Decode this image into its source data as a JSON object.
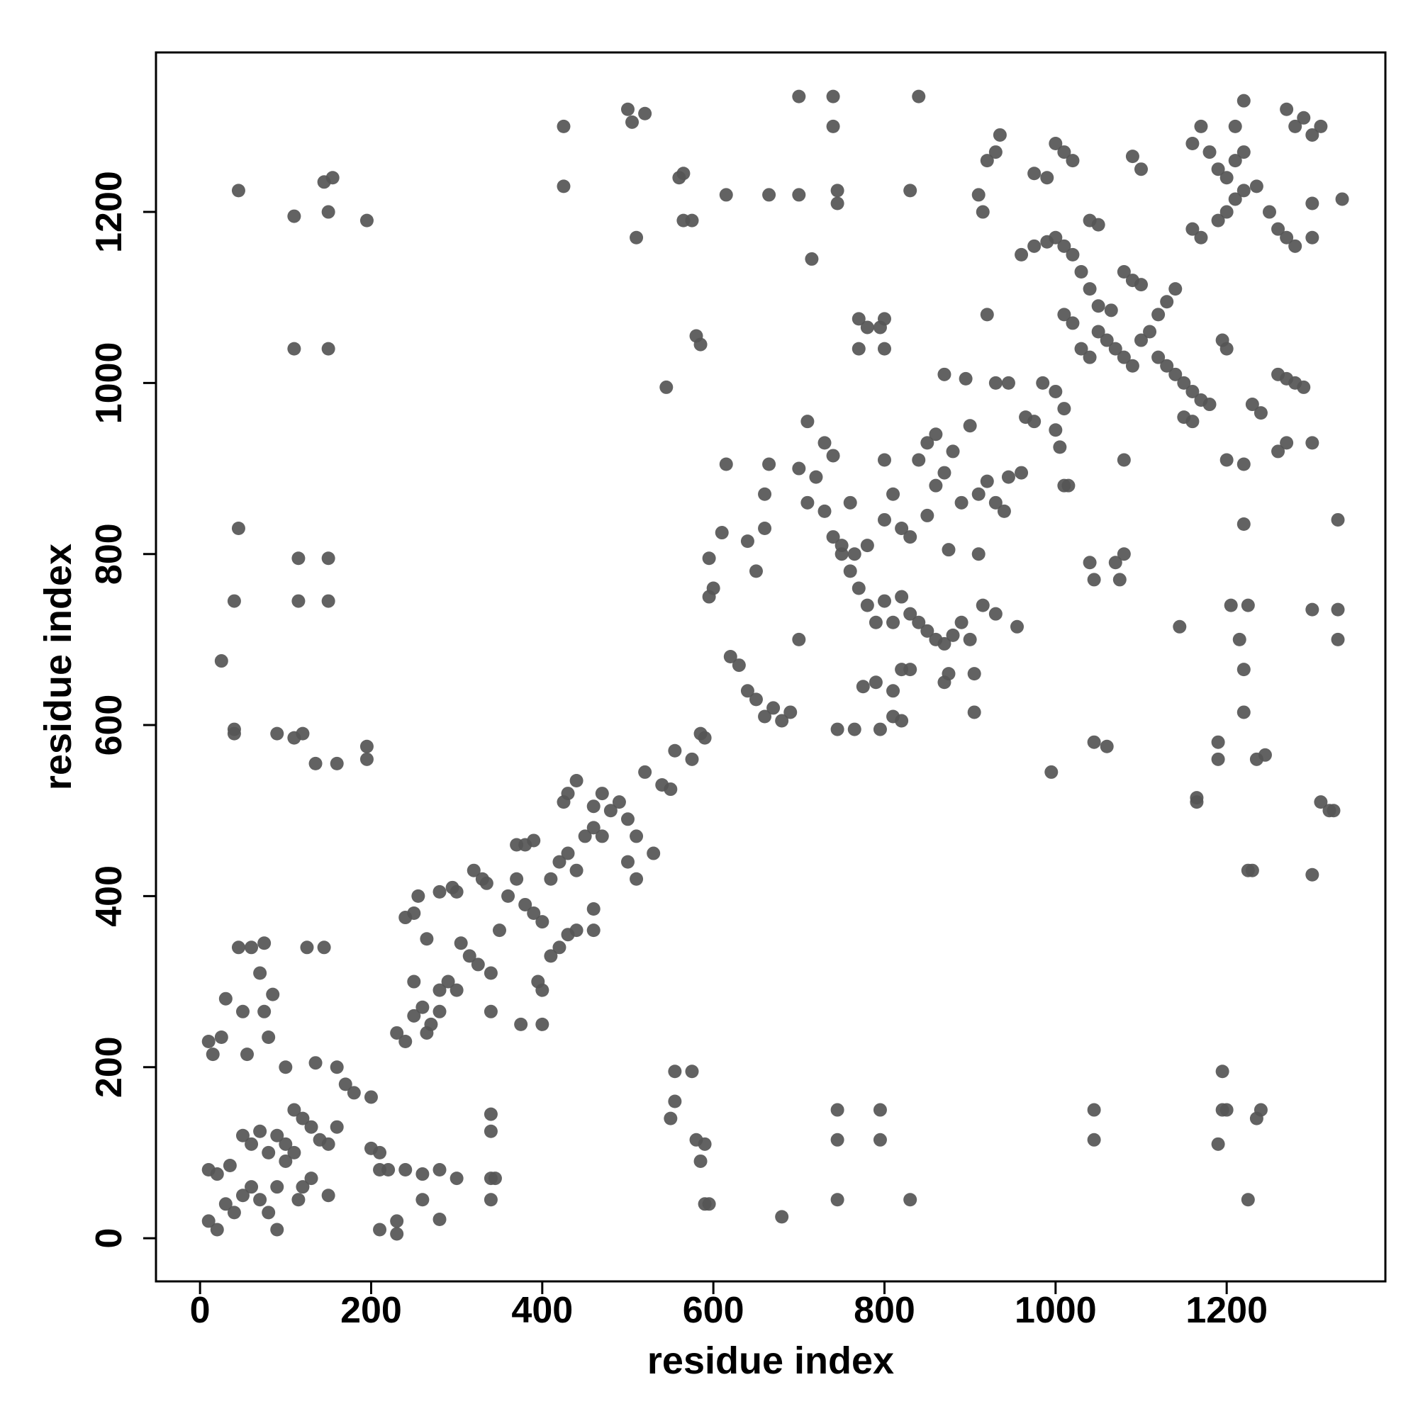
{
  "chart_data": {
    "type": "scatter",
    "x_label": "residue index",
    "y_label": "residue index",
    "xlim": [
      -51.5,
      1385.5
    ],
    "ylim": [
      -50.5,
      1386.5
    ],
    "xticks": [
      0,
      200,
      400,
      600,
      800,
      1000,
      1200
    ],
    "yticks": [
      0,
      200,
      400,
      600,
      800,
      1000,
      1200
    ],
    "grid": false,
    "color": "#555555",
    "x": [
      10,
      20,
      30,
      40,
      50,
      60,
      70,
      80,
      90,
      10,
      20,
      35,
      50,
      60,
      70,
      80,
      90,
      100,
      110,
      120,
      130,
      140,
      150,
      160,
      160,
      170,
      180,
      200,
      200,
      210,
      210,
      220,
      230,
      210,
      230,
      240,
      260,
      280,
      300,
      260,
      280,
      10,
      25,
      15,
      55,
      50,
      80,
      75,
      85,
      30,
      70,
      60,
      45,
      75,
      125,
      145,
      100,
      135,
      115,
      120,
      130,
      150,
      100,
      110,
      90,
      45,
      110,
      150,
      145,
      155,
      195,
      110,
      150,
      45,
      115,
      150,
      40,
      115,
      150,
      25,
      40,
      40,
      90,
      110,
      120,
      135,
      160,
      195,
      195,
      230,
      240,
      250,
      260,
      270,
      280,
      290,
      300,
      250,
      255,
      265,
      280,
      295,
      305,
      315,
      325,
      340,
      350,
      360,
      370,
      380,
      390,
      400,
      410,
      420,
      430,
      440,
      370,
      380,
      390,
      400,
      375,
      340,
      335,
      410,
      420,
      430,
      440,
      450,
      460,
      470,
      480,
      490,
      500,
      510,
      430,
      425,
      440,
      460,
      470,
      500,
      510,
      530,
      520,
      540,
      550,
      460,
      460,
      400,
      395,
      320,
      330,
      300,
      280,
      265,
      240,
      250,
      340,
      340,
      340,
      340,
      345,
      555,
      575,
      555,
      550,
      580,
      590,
      585,
      590,
      595,
      680,
      745,
      745,
      745,
      795,
      795,
      830,
      425,
      425,
      500,
      505,
      520,
      510,
      560,
      565,
      565,
      575,
      615,
      665,
      700,
      700,
      740,
      740,
      745,
      745,
      715,
      840,
      830,
      580,
      585,
      545,
      770,
      780,
      795,
      800,
      770,
      800,
      555,
      575,
      585,
      590,
      595,
      600,
      595,
      610,
      615,
      620,
      630,
      640,
      650,
      660,
      670,
      680,
      690,
      650,
      640,
      660,
      660,
      665,
      700,
      710,
      720,
      730,
      740,
      750,
      760,
      770,
      780,
      790,
      800,
      810,
      820,
      830,
      840,
      850,
      860,
      870,
      880,
      890,
      900,
      700,
      710,
      730,
      740,
      750,
      765,
      780,
      760,
      745,
      765,
      775,
      790,
      795,
      810,
      820,
      810,
      820,
      830,
      800,
      820,
      830,
      800,
      810,
      840,
      850,
      860,
      860,
      870,
      880,
      890,
      900,
      910,
      920,
      930,
      940,
      870,
      875,
      905,
      905,
      915,
      930,
      955,
      910,
      875,
      945,
      960,
      850,
      870,
      895,
      910,
      915,
      920,
      930,
      945,
      965,
      975,
      985,
      1000,
      1010,
      1000,
      1005,
      1010,
      1015,
      920,
      930,
      935,
      975,
      990,
      1000,
      1010,
      1020,
      960,
      975,
      990,
      1000,
      1010,
      1020,
      1030,
      1040,
      1050,
      1010,
      1020,
      1030,
      1040,
      1050,
      1060,
      1070,
      1080,
      1090,
      1100,
      1110,
      1120,
      1130,
      1140,
      1080,
      1090,
      1100,
      1120,
      1130,
      1140,
      1150,
      1160,
      1170,
      1150,
      1160,
      1180,
      1160,
      1170,
      1190,
      1200,
      1210,
      1220,
      1235,
      1250,
      1260,
      1270,
      1280,
      1160,
      1170,
      1180,
      1190,
      1200,
      1210,
      1220,
      1220,
      1210,
      1280,
      1290,
      1300,
      1310,
      1270,
      1300,
      1300,
      1335,
      1260,
      1270,
      1280,
      1290,
      1230,
      1240,
      1260,
      1270,
      1300,
      1200,
      1220,
      1220,
      1330,
      1040,
      1045,
      1070,
      1080,
      1075,
      1090,
      1100,
      1040,
      1050,
      1065,
      1080,
      1145,
      1195,
      1200,
      1205,
      1225,
      1215,
      1220,
      1220,
      1300,
      1330,
      1330,
      1190,
      1190,
      1235,
      1245,
      1165,
      1165,
      1310,
      1320,
      1325,
      1225,
      1230,
      1300,
      995,
      1045,
      1060,
      1045,
      1045,
      1195,
      1195,
      1200,
      1190,
      1240,
      1235,
      1225
    ],
    "values": [
      20,
      10,
      40,
      30,
      50,
      60,
      45,
      30,
      10,
      80,
      75,
      85,
      120,
      110,
      125,
      100,
      120,
      110,
      150,
      140,
      130,
      115,
      110,
      130,
      200,
      180,
      170,
      165,
      105,
      100,
      80,
      80,
      20,
      10,
      5,
      80,
      75,
      80,
      70,
      45,
      22,
      230,
      235,
      215,
      215,
      265,
      235,
      265,
      285,
      280,
      310,
      340,
      340,
      345,
      340,
      340,
      200,
      205,
      45,
      60,
      70,
      50,
      90,
      100,
      60,
      1225,
      1195,
      1200,
      1235,
      1240,
      1190,
      1040,
      1040,
      830,
      795,
      795,
      745,
      745,
      745,
      675,
      595,
      590,
      590,
      585,
      590,
      555,
      555,
      560,
      575,
      240,
      230,
      260,
      270,
      250,
      290,
      300,
      290,
      380,
      400,
      350,
      405,
      410,
      345,
      330,
      320,
      310,
      360,
      400,
      420,
      390,
      380,
      370,
      330,
      340,
      355,
      360,
      460,
      460,
      465,
      250,
      250,
      265,
      415,
      420,
      440,
      450,
      430,
      470,
      480,
      470,
      500,
      510,
      490,
      470,
      520,
      510,
      535,
      505,
      520,
      440,
      420,
      450,
      545,
      530,
      525,
      385,
      360,
      290,
      300,
      430,
      420,
      405,
      265,
      240,
      375,
      300,
      145,
      125,
      70,
      45,
      70,
      195,
      195,
      160,
      140,
      115,
      110,
      90,
      40,
      40,
      25,
      150,
      115,
      45,
      150,
      115,
      45,
      1300,
      1230,
      1320,
      1305,
      1315,
      1170,
      1240,
      1245,
      1190,
      1190,
      1220,
      1220,
      1220,
      1335,
      1335,
      1300,
      1225,
      1210,
      1145,
      1335,
      1225,
      1055,
      1045,
      995,
      1075,
      1065,
      1065,
      1075,
      1040,
      1040,
      570,
      560,
      590,
      585,
      750,
      760,
      795,
      825,
      905,
      680,
      670,
      640,
      630,
      610,
      620,
      605,
      615,
      780,
      815,
      830,
      870,
      905,
      900,
      860,
      890,
      850,
      820,
      800,
      780,
      760,
      740,
      720,
      745,
      720,
      750,
      730,
      720,
      710,
      700,
      695,
      705,
      720,
      700,
      700,
      955,
      930,
      915,
      810,
      800,
      810,
      860,
      595,
      595,
      645,
      650,
      595,
      610,
      605,
      640,
      665,
      665,
      840,
      830,
      820,
      910,
      870,
      910,
      930,
      940,
      880,
      895,
      920,
      860,
      950,
      870,
      885,
      860,
      850,
      650,
      660,
      660,
      615,
      740,
      730,
      715,
      800,
      805,
      890,
      895,
      845,
      1010,
      1005,
      1220,
      1200,
      1080,
      1000,
      1000,
      960,
      955,
      1000,
      990,
      970,
      945,
      925,
      880,
      880,
      1260,
      1270,
      1290,
      1245,
      1240,
      1280,
      1270,
      1260,
      1150,
      1160,
      1165,
      1170,
      1160,
      1150,
      1130,
      1110,
      1090,
      1080,
      1070,
      1040,
      1030,
      1060,
      1050,
      1040,
      1030,
      1020,
      1050,
      1060,
      1080,
      1095,
      1110,
      1130,
      1120,
      1115,
      1030,
      1020,
      1010,
      1000,
      990,
      980,
      960,
      955,
      975,
      1180,
      1170,
      1190,
      1200,
      1215,
      1225,
      1230,
      1200,
      1180,
      1170,
      1160,
      1280,
      1300,
      1270,
      1250,
      1240,
      1260,
      1270,
      1330,
      1300,
      1300,
      1310,
      1290,
      1300,
      1320,
      1210,
      1170,
      1215,
      1010,
      1005,
      1000,
      995,
      975,
      965,
      920,
      930,
      930,
      910,
      905,
      835,
      840,
      790,
      770,
      790,
      800,
      770,
      1265,
      1250,
      1190,
      1185,
      1085,
      910,
      715,
      1050,
      1040,
      740,
      740,
      700,
      665,
      615,
      735,
      735,
      700,
      580,
      560,
      560,
      565,
      515,
      510,
      510,
      500,
      500,
      430,
      430,
      425,
      545,
      580,
      575,
      150,
      115,
      195,
      150,
      150,
      110,
      150,
      140,
      45
    ]
  }
}
